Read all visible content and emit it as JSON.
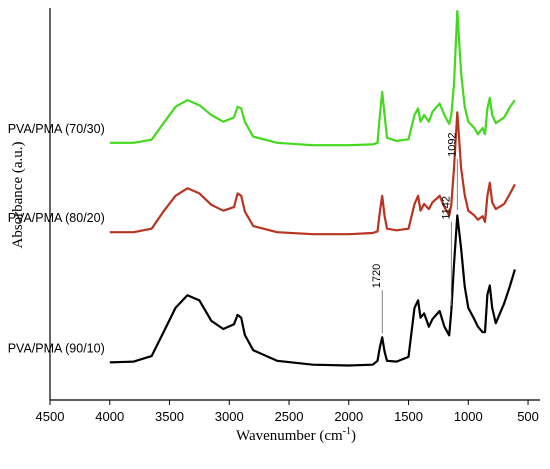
{
  "chart_data": {
    "type": "line",
    "title": "",
    "xlabel": "Wavenumber (cm",
    "xlabel_sup": "-1",
    "xlabel_close": ")",
    "ylabel": "Absorbance (a.u.)",
    "xlim": [
      4500,
      400
    ],
    "x_reversed": true,
    "ylim": [
      0,
      10
    ],
    "y_ticks_shown": false,
    "grid": false,
    "x_ticks": [
      {
        "value": 4500,
        "label": "4500"
      },
      {
        "value": 4000,
        "label": "4000"
      },
      {
        "value": 3500,
        "label": "3500"
      },
      {
        "value": 3000,
        "label": "3000"
      },
      {
        "value": 2500,
        "label": "2500"
      },
      {
        "value": 2000,
        "label": "2000"
      },
      {
        "value": 1500,
        "label": "1500"
      },
      {
        "value": 1000,
        "label": "1000"
      },
      {
        "value": 500,
        "label": "500"
      }
    ],
    "series": [
      {
        "name": "PVA/PMA (70/30)",
        "color": "#44d81e",
        "points": [
          [
            4000,
            6.56
          ],
          [
            3800,
            6.56
          ],
          [
            3650,
            6.64
          ],
          [
            3550,
            7.06
          ],
          [
            3450,
            7.48
          ],
          [
            3350,
            7.65
          ],
          [
            3250,
            7.52
          ],
          [
            3150,
            7.27
          ],
          [
            3050,
            7.1
          ],
          [
            2960,
            7.21
          ],
          [
            2930,
            7.48
          ],
          [
            2900,
            7.44
          ],
          [
            2870,
            7.1
          ],
          [
            2800,
            6.72
          ],
          [
            2600,
            6.56
          ],
          [
            2300,
            6.5
          ],
          [
            2000,
            6.5
          ],
          [
            1800,
            6.52
          ],
          [
            1760,
            6.56
          ],
          [
            1740,
            7.27
          ],
          [
            1720,
            7.86
          ],
          [
            1700,
            7.27
          ],
          [
            1680,
            6.69
          ],
          [
            1600,
            6.61
          ],
          [
            1500,
            6.65
          ],
          [
            1450,
            7.27
          ],
          [
            1420,
            7.44
          ],
          [
            1400,
            7.1
          ],
          [
            1370,
            7.27
          ],
          [
            1330,
            7.1
          ],
          [
            1300,
            7.35
          ],
          [
            1240,
            7.56
          ],
          [
            1200,
            7.27
          ],
          [
            1160,
            7.04
          ],
          [
            1142,
            7.27
          ],
          [
            1120,
            8.06
          ],
          [
            1092,
            9.92
          ],
          [
            1060,
            8.34
          ],
          [
            1030,
            7.48
          ],
          [
            1000,
            7.1
          ],
          [
            950,
            6.94
          ],
          [
            920,
            6.78
          ],
          [
            880,
            6.94
          ],
          [
            860,
            6.78
          ],
          [
            840,
            7.44
          ],
          [
            820,
            7.71
          ],
          [
            800,
            7.27
          ],
          [
            770,
            7.06
          ],
          [
            700,
            7.21
          ],
          [
            650,
            7.48
          ],
          [
            610,
            7.65
          ]
        ]
      },
      {
        "name": "PVA/PMA (80/20)",
        "color": "#b93420",
        "points": [
          [
            4000,
            4.28
          ],
          [
            3800,
            4.28
          ],
          [
            3650,
            4.37
          ],
          [
            3550,
            4.81
          ],
          [
            3450,
            5.21
          ],
          [
            3350,
            5.4
          ],
          [
            3250,
            5.27
          ],
          [
            3150,
            4.98
          ],
          [
            3050,
            4.83
          ],
          [
            2960,
            4.92
          ],
          [
            2930,
            5.27
          ],
          [
            2900,
            5.21
          ],
          [
            2870,
            4.81
          ],
          [
            2800,
            4.44
          ],
          [
            2600,
            4.28
          ],
          [
            2300,
            4.23
          ],
          [
            2000,
            4.23
          ],
          [
            1800,
            4.26
          ],
          [
            1760,
            4.3
          ],
          [
            1740,
            4.81
          ],
          [
            1720,
            5.21
          ],
          [
            1700,
            4.69
          ],
          [
            1680,
            4.37
          ],
          [
            1600,
            4.33
          ],
          [
            1500,
            4.37
          ],
          [
            1450,
            5.0
          ],
          [
            1420,
            5.21
          ],
          [
            1400,
            4.83
          ],
          [
            1370,
            5.0
          ],
          [
            1330,
            4.87
          ],
          [
            1300,
            5.04
          ],
          [
            1240,
            5.21
          ],
          [
            1200,
            4.92
          ],
          [
            1160,
            4.71
          ],
          [
            1142,
            4.98
          ],
          [
            1120,
            5.92
          ],
          [
            1092,
            7.34
          ],
          [
            1060,
            5.92
          ],
          [
            1030,
            5.23
          ],
          [
            1000,
            4.83
          ],
          [
            950,
            4.71
          ],
          [
            920,
            4.6
          ],
          [
            880,
            4.69
          ],
          [
            860,
            4.54
          ],
          [
            840,
            5.21
          ],
          [
            820,
            5.54
          ],
          [
            800,
            5.04
          ],
          [
            770,
            4.87
          ],
          [
            700,
            5.0
          ],
          [
            650,
            5.27
          ],
          [
            610,
            5.5
          ]
        ]
      },
      {
        "name": "PVA/PMA (90/10)",
        "color": "#000000",
        "points": [
          [
            4000,
            0.96
          ],
          [
            3800,
            0.98
          ],
          [
            3650,
            1.12
          ],
          [
            3550,
            1.73
          ],
          [
            3450,
            2.35
          ],
          [
            3350,
            2.67
          ],
          [
            3250,
            2.54
          ],
          [
            3150,
            2.02
          ],
          [
            3050,
            1.81
          ],
          [
            2960,
            1.93
          ],
          [
            2930,
            2.17
          ],
          [
            2900,
            2.1
          ],
          [
            2870,
            1.66
          ],
          [
            2800,
            1.27
          ],
          [
            2600,
            1.0
          ],
          [
            2300,
            0.9
          ],
          [
            2000,
            0.88
          ],
          [
            1800,
            0.9
          ],
          [
            1760,
            1.0
          ],
          [
            1740,
            1.35
          ],
          [
            1720,
            1.6
          ],
          [
            1700,
            1.23
          ],
          [
            1680,
            1.0
          ],
          [
            1600,
            0.98
          ],
          [
            1500,
            1.1
          ],
          [
            1450,
            2.35
          ],
          [
            1420,
            2.54
          ],
          [
            1400,
            2.1
          ],
          [
            1370,
            2.21
          ],
          [
            1330,
            1.87
          ],
          [
            1300,
            2.06
          ],
          [
            1240,
            2.27
          ],
          [
            1200,
            1.87
          ],
          [
            1160,
            1.65
          ],
          [
            1142,
            2.27
          ],
          [
            1120,
            3.46
          ],
          [
            1092,
            4.71
          ],
          [
            1060,
            3.87
          ],
          [
            1030,
            2.9
          ],
          [
            1000,
            2.35
          ],
          [
            950,
            2.06
          ],
          [
            920,
            1.87
          ],
          [
            880,
            1.73
          ],
          [
            860,
            1.73
          ],
          [
            840,
            2.69
          ],
          [
            820,
            2.92
          ],
          [
            800,
            2.35
          ],
          [
            770,
            1.96
          ],
          [
            700,
            2.46
          ],
          [
            650,
            2.92
          ],
          [
            610,
            3.33
          ]
        ]
      }
    ],
    "annotations": [
      {
        "text": "1720",
        "x": 1720,
        "y_from": 1.7,
        "y_to": 2.8
      },
      {
        "text": "1142",
        "x": 1142,
        "y_from": 2.4,
        "y_to": 4.55
      },
      {
        "text": "1092",
        "x": 1092,
        "y_from": 4.85,
        "y_to": 6.15
      }
    ]
  }
}
